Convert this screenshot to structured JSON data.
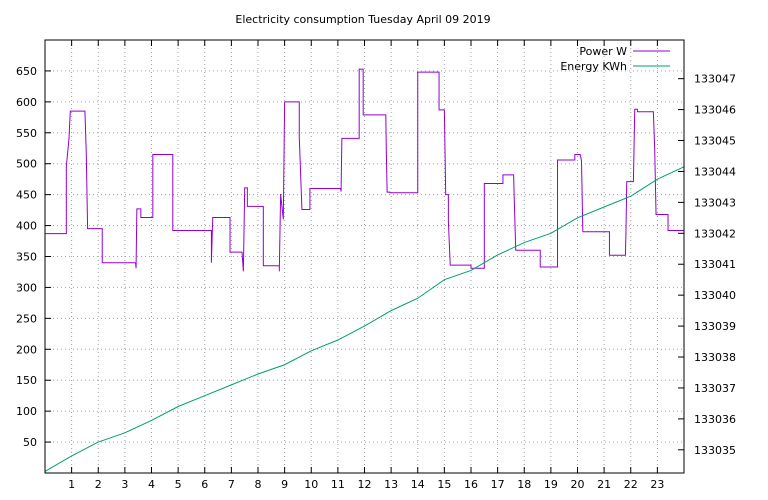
{
  "chart_data": {
    "type": "line",
    "title": "Electricity consumption Tuesday April 09 2019",
    "xlabel": "",
    "ylabel": "",
    "xlim": [
      0,
      24
    ],
    "ylim": [
      0,
      700
    ],
    "y2lim": [
      133034.25,
      133048.25
    ],
    "x_ticks": [
      1,
      2,
      3,
      4,
      5,
      6,
      7,
      8,
      9,
      10,
      11,
      12,
      13,
      14,
      15,
      16,
      17,
      18,
      19,
      20,
      21,
      22,
      23
    ],
    "y_ticks": [
      50,
      100,
      150,
      200,
      250,
      300,
      350,
      400,
      450,
      500,
      550,
      600,
      650
    ],
    "y2_ticks": [
      133035,
      133036,
      133037,
      133038,
      133039,
      133040,
      133041,
      133042,
      133043,
      133044,
      133045,
      133046,
      133047
    ],
    "grid": true,
    "legend_position": "top-right",
    "series": [
      {
        "name": "Power W",
        "axis": "left",
        "color": "#9400d3",
        "step": true,
        "points": [
          [
            0,
            387
          ],
          [
            0.8,
            387
          ],
          [
            0.8,
            495
          ],
          [
            0.9,
            540
          ],
          [
            0.95,
            585
          ],
          [
            1.5,
            585
          ],
          [
            1.55,
            517
          ],
          [
            1.6,
            395
          ],
          [
            2.15,
            395
          ],
          [
            2.15,
            340
          ],
          [
            3.4,
            340
          ],
          [
            3.42,
            331
          ],
          [
            3.45,
            427
          ],
          [
            3.6,
            427
          ],
          [
            3.6,
            413
          ],
          [
            4.05,
            413
          ],
          [
            4.05,
            515
          ],
          [
            4.8,
            515
          ],
          [
            4.8,
            392
          ],
          [
            6.25,
            392
          ],
          [
            6.25,
            340
          ],
          [
            6.3,
            413
          ],
          [
            6.95,
            413
          ],
          [
            6.95,
            357
          ],
          [
            7.4,
            357
          ],
          [
            7.45,
            326
          ],
          [
            7.5,
            461
          ],
          [
            7.6,
            461
          ],
          [
            7.6,
            431
          ],
          [
            8.2,
            431
          ],
          [
            8.2,
            335
          ],
          [
            8.8,
            335
          ],
          [
            8.8,
            326
          ],
          [
            8.85,
            451
          ],
          [
            8.95,
            410
          ],
          [
            9.0,
            600
          ],
          [
            9.55,
            600
          ],
          [
            9.55,
            543
          ],
          [
            9.65,
            426
          ],
          [
            9.95,
            426
          ],
          [
            9.95,
            460
          ],
          [
            11.1,
            460
          ],
          [
            11.12,
            455
          ],
          [
            11.15,
            541
          ],
          [
            11.8,
            541
          ],
          [
            11.8,
            653
          ],
          [
            11.95,
            653
          ],
          [
            11.95,
            579
          ],
          [
            12.8,
            579
          ],
          [
            12.82,
            519
          ],
          [
            12.85,
            454
          ],
          [
            12.95,
            454
          ],
          [
            12.95,
            453
          ],
          [
            14.0,
            453
          ],
          [
            14.0,
            648
          ],
          [
            14.8,
            648
          ],
          [
            14.8,
            587
          ],
          [
            15.0,
            587
          ],
          [
            15.05,
            450
          ],
          [
            15.15,
            450
          ],
          [
            15.15,
            407
          ],
          [
            15.22,
            336
          ],
          [
            16.0,
            336
          ],
          [
            16.0,
            331
          ],
          [
            16.5,
            331
          ],
          [
            16.5,
            468
          ],
          [
            17.2,
            468
          ],
          [
            17.2,
            482
          ],
          [
            17.6,
            482
          ],
          [
            17.62,
            450
          ],
          [
            17.68,
            360
          ],
          [
            18.6,
            360
          ],
          [
            18.6,
            333
          ],
          [
            19.25,
            333
          ],
          [
            19.25,
            506
          ],
          [
            19.9,
            506
          ],
          [
            19.9,
            515
          ],
          [
            20.1,
            515
          ],
          [
            20.15,
            505
          ],
          [
            20.2,
            390
          ],
          [
            21.2,
            390
          ],
          [
            21.2,
            352
          ],
          [
            21.8,
            352
          ],
          [
            21.82,
            390
          ],
          [
            21.85,
            471
          ],
          [
            22.1,
            471
          ],
          [
            22.15,
            588
          ],
          [
            22.25,
            588
          ],
          [
            22.25,
            584
          ],
          [
            22.85,
            584
          ],
          [
            22.9,
            523
          ],
          [
            22.95,
            418
          ],
          [
            23.4,
            418
          ],
          [
            23.4,
            392
          ],
          [
            24,
            392
          ]
        ]
      },
      {
        "name": "Energy KWh",
        "axis": "right",
        "color": "#009e73",
        "step": false,
        "points": [
          [
            0,
            133034.3
          ],
          [
            1,
            133034.8
          ],
          [
            2,
            133035.25
          ],
          [
            3,
            133035.55
          ],
          [
            4,
            133035.95
          ],
          [
            5,
            133036.4
          ],
          [
            6,
            133036.75
          ],
          [
            7,
            133037.1
          ],
          [
            8,
            133037.45
          ],
          [
            9,
            133037.75
          ],
          [
            10,
            133038.2
          ],
          [
            11,
            133038.55
          ],
          [
            12,
            133039.0
          ],
          [
            13,
            133039.5
          ],
          [
            14,
            133039.9
          ],
          [
            15,
            133040.5
          ],
          [
            16,
            133040.8
          ],
          [
            17,
            133041.3
          ],
          [
            18,
            133041.7
          ],
          [
            19,
            133042.0
          ],
          [
            20,
            133042.5
          ],
          [
            21,
            133042.85
          ],
          [
            22,
            133043.2
          ],
          [
            23,
            133043.75
          ],
          [
            24,
            133044.15
          ]
        ]
      }
    ]
  }
}
